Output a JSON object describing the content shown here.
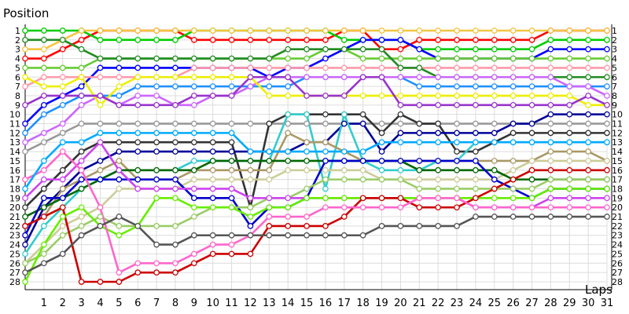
{
  "chart_data": {
    "type": "line",
    "title": "",
    "ylabel": "Position",
    "xlabel": "Laps",
    "x": [
      0,
      1,
      2,
      3,
      4,
      5,
      6,
      7,
      8,
      9,
      10,
      11,
      12,
      13,
      14,
      15,
      16,
      17,
      18,
      19,
      20,
      21,
      22,
      23,
      24,
      25,
      26,
      27,
      28,
      29,
      30,
      31
    ],
    "xticks": [
      1,
      2,
      3,
      4,
      5,
      6,
      7,
      8,
      9,
      10,
      11,
      12,
      13,
      14,
      15,
      16,
      17,
      18,
      19,
      20,
      21,
      22,
      23,
      24,
      25,
      26,
      27,
      28,
      29,
      30,
      31
    ],
    "yticks": [
      1,
      2,
      3,
      4,
      5,
      6,
      7,
      8,
      9,
      10,
      11,
      12,
      13,
      14,
      15,
      16,
      17,
      18,
      19,
      20,
      21,
      22,
      23,
      24,
      25,
      26,
      27,
      28
    ],
    "ylim": [
      1,
      28
    ],
    "y_inverted": true,
    "grid": true,
    "legend": "none",
    "series": [
      {
        "color": "#ff0000",
        "marker": "#ffffff",
        "values": [
          4,
          4,
          3,
          2,
          1,
          1,
          1,
          1,
          1,
          2,
          2,
          2,
          2,
          2,
          2,
          2,
          2,
          1,
          1,
          3,
          3,
          2,
          2,
          2,
          2,
          2,
          2,
          2,
          1,
          1,
          1,
          1
        ]
      },
      {
        "color": "#00cc00",
        "marker": "#ffffff",
        "values": [
          1,
          1,
          1,
          1,
          2,
          2,
          2,
          2,
          2,
          1,
          1,
          1,
          1,
          1,
          1,
          1,
          1,
          2,
          2,
          2,
          2,
          3,
          3,
          3,
          3,
          3,
          3,
          3,
          2,
          2,
          2,
          2
        ]
      },
      {
        "color": "#f4c542",
        "marker": "#ffffff",
        "values": [
          3,
          3,
          2,
          1,
          1,
          1,
          1,
          1,
          1,
          1,
          1,
          1,
          1,
          1,
          1,
          1,
          1,
          1,
          1,
          1,
          1,
          1,
          1,
          1,
          1,
          1,
          1,
          1,
          1,
          1,
          1,
          1
        ]
      },
      {
        "color": "#0000ff",
        "marker": "#ffffff",
        "values": [
          11,
          9,
          8,
          7,
          5,
          5,
          5,
          5,
          5,
          5,
          5,
          5,
          5,
          6,
          5,
          5,
          4,
          3,
          2,
          2,
          2,
          3,
          4,
          4,
          4,
          4,
          4,
          4,
          3,
          3,
          3,
          3
        ]
      },
      {
        "color": "#66cc33",
        "marker": "#ffffff",
        "values": [
          5,
          5,
          5,
          5,
          4,
          4,
          4,
          4,
          4,
          4,
          4,
          4,
          4,
          4,
          4,
          4,
          3,
          3,
          4,
          4,
          4,
          4,
          4,
          4,
          4,
          4,
          4,
          4,
          4,
          4,
          4,
          4
        ]
      },
      {
        "color": "#ff99aa",
        "marker": "#ffffff",
        "values": [
          7,
          6,
          6,
          6,
          6,
          6,
          6,
          6,
          6,
          5,
          5,
          5,
          5,
          5,
          5,
          5,
          5,
          5,
          5,
          5,
          5,
          5,
          5,
          5,
          5,
          5,
          5,
          5,
          5,
          5,
          5,
          5
        ]
      },
      {
        "color": "#228b22",
        "marker": "#ffffff",
        "values": [
          2,
          2,
          2,
          3,
          4,
          4,
          4,
          4,
          4,
          4,
          4,
          4,
          4,
          4,
          3,
          3,
          3,
          3,
          3,
          3,
          5,
          5,
          6,
          6,
          6,
          6,
          6,
          6,
          6,
          6,
          6,
          6
        ]
      },
      {
        "color": "#1e90ff",
        "marker": "#ffffff",
        "values": [
          12,
          10,
          9,
          8,
          8,
          8,
          7,
          7,
          7,
          7,
          7,
          7,
          7,
          7,
          7,
          6,
          6,
          6,
          6,
          6,
          6,
          7,
          7,
          7,
          7,
          7,
          7,
          7,
          7,
          7,
          7,
          7
        ]
      },
      {
        "color": "#cc66ff",
        "marker": "#ffffff",
        "values": [
          13,
          12,
          11,
          9,
          8,
          9,
          8,
          8,
          9,
          9,
          8,
          8,
          7,
          6,
          6,
          6,
          6,
          6,
          6,
          6,
          6,
          6,
          6,
          6,
          6,
          6,
          6,
          6,
          6,
          7,
          7,
          8
        ]
      },
      {
        "color": "#eeee00",
        "marker": "#ffffff",
        "values": [
          6,
          7,
          7,
          6,
          9,
          7,
          6,
          6,
          6,
          6,
          6,
          6,
          6,
          8,
          8,
          8,
          8,
          8,
          8,
          8,
          8,
          8,
          8,
          8,
          8,
          8,
          8,
          8,
          8,
          8,
          9,
          9
        ]
      },
      {
        "color": "#9933cc",
        "marker": "#ffffff",
        "values": [
          9,
          8,
          8,
          8,
          8,
          9,
          9,
          9,
          9,
          8,
          8,
          8,
          6,
          6,
          6,
          8,
          8,
          8,
          6,
          6,
          9,
          9,
          9,
          9,
          9,
          9,
          9,
          9,
          9,
          9,
          8,
          9
        ]
      },
      {
        "color": "#999999",
        "marker": "#ffffff",
        "values": [
          14,
          13,
          12,
          11,
          11,
          11,
          11,
          11,
          11,
          11,
          11,
          11,
          11,
          11,
          11,
          11,
          11,
          11,
          11,
          11,
          11,
          11,
          11,
          11,
          11,
          11,
          11,
          11,
          11,
          11,
          11,
          11
        ]
      },
      {
        "color": "#333333",
        "marker": "#ffffff",
        "values": [
          20,
          18,
          16,
          14,
          13,
          13,
          13,
          13,
          13,
          13,
          13,
          13,
          20,
          11,
          10,
          10,
          10,
          10,
          10,
          12,
          10,
          11,
          11,
          14,
          14,
          13,
          12,
          12,
          12,
          12,
          12,
          12
        ]
      },
      {
        "color": "#000099",
        "marker": "#ffffff",
        "values": [
          24,
          20,
          18,
          16,
          15,
          14,
          14,
          14,
          14,
          14,
          14,
          14,
          14,
          14,
          14,
          13,
          13,
          11,
          11,
          14,
          12,
          12,
          12,
          12,
          12,
          12,
          11,
          11,
          10,
          10,
          10,
          10
        ]
      },
      {
        "color": "#33cccc",
        "marker": "#ffffff",
        "values": [
          25,
          22,
          20,
          18,
          17,
          16,
          16,
          16,
          16,
          15,
          15,
          15,
          15,
          15,
          10,
          10,
          18,
          10,
          15,
          16,
          16,
          16,
          15,
          15,
          13,
          13,
          13,
          13,
          13,
          13,
          13,
          13
        ]
      },
      {
        "color": "#aa9966",
        "marker": "#ffffff",
        "values": [
          22,
          21,
          18,
          17,
          16,
          15,
          17,
          17,
          17,
          16,
          16,
          16,
          16,
          16,
          12,
          13,
          13,
          14,
          15,
          15,
          15,
          15,
          15,
          15,
          15,
          15,
          15,
          15,
          14,
          14,
          14,
          15
        ]
      },
      {
        "color": "#cccc99",
        "marker": "#ffffff",
        "values": [
          26,
          24,
          22,
          21,
          20,
          18,
          18,
          18,
          18,
          17,
          17,
          17,
          17,
          17,
          16,
          16,
          16,
          16,
          16,
          17,
          17,
          17,
          17,
          17,
          17,
          17,
          16,
          15,
          15,
          15,
          15,
          15
        ]
      },
      {
        "color": "#006600",
        "marker": "#ffffff",
        "values": [
          21,
          20,
          19,
          18,
          17,
          16,
          16,
          16,
          16,
          16,
          15,
          15,
          15,
          15,
          15,
          15,
          15,
          15,
          15,
          15,
          15,
          16,
          16,
          16,
          16,
          16,
          17,
          17,
          17,
          17,
          17,
          17
        ]
      },
      {
        "color": "#0000cc",
        "marker": "#ffffff",
        "values": [
          23,
          19,
          19,
          17,
          17,
          17,
          17,
          17,
          17,
          19,
          19,
          19,
          22,
          20,
          20,
          19,
          15,
          15,
          15,
          15,
          15,
          15,
          15,
          15,
          15,
          17,
          18,
          19,
          18,
          18,
          18,
          18
        ]
      },
      {
        "color": "#99cc66",
        "marker": "#ffffff",
        "values": [
          26,
          25,
          23,
          22,
          21,
          22,
          22,
          22,
          22,
          21,
          20,
          20,
          20,
          19,
          19,
          18,
          17,
          17,
          17,
          17,
          17,
          18,
          18,
          18,
          18,
          18,
          18,
          18,
          17,
          17,
          17,
          17
        ]
      },
      {
        "color": "#cc44ee",
        "marker": "#ffffff",
        "values": [
          19,
          17,
          17,
          15,
          13,
          16,
          18,
          18,
          18,
          18,
          18,
          18,
          19,
          19,
          19,
          19,
          19,
          19,
          19,
          19,
          19,
          19,
          19,
          19,
          20,
          20,
          20,
          20,
          19,
          19,
          19,
          19
        ]
      },
      {
        "color": "#66ee00",
        "marker": "#ffffff",
        "values": [
          28,
          24,
          21,
          20,
          22,
          23,
          22,
          19,
          19,
          20,
          20,
          20,
          21,
          20,
          20,
          19,
          19,
          19,
          19,
          19,
          19,
          19,
          19,
          19,
          19,
          19,
          19,
          19,
          18,
          18,
          18,
          18
        ]
      },
      {
        "color": "#cc0000",
        "marker": "#ffffff",
        "values": [
          22,
          21,
          20,
          28,
          28,
          28,
          27,
          27,
          27,
          26,
          25,
          25,
          25,
          22,
          22,
          22,
          22,
          21,
          19,
          19,
          19,
          20,
          20,
          20,
          19,
          18,
          17,
          16,
          16,
          16,
          16,
          16
        ]
      },
      {
        "color": "#ff66cc",
        "marker": "#ffffff",
        "values": [
          17,
          16,
          14,
          16,
          20,
          27,
          26,
          26,
          26,
          25,
          24,
          24,
          23,
          21,
          21,
          21,
          20,
          20,
          20,
          20,
          20,
          19,
          19,
          19,
          20,
          20,
          20,
          20,
          20,
          20,
          20,
          20
        ]
      },
      {
        "color": "#00aaff",
        "marker": "#ffffff",
        "values": [
          18,
          15,
          13,
          13,
          12,
          12,
          12,
          12,
          12,
          12,
          12,
          12,
          14,
          14,
          14,
          14,
          14,
          14,
          14,
          13,
          13,
          13,
          13,
          13,
          13,
          13,
          13,
          13,
          13,
          13,
          13,
          13
        ]
      },
      {
        "color": "#555555",
        "marker": "#ffffff",
        "values": [
          27,
          26,
          25,
          23,
          22,
          21,
          22,
          24,
          24,
          23,
          23,
          23,
          23,
          23,
          23,
          23,
          23,
          23,
          23,
          22,
          22,
          22,
          22,
          22,
          21,
          21,
          21,
          21,
          21,
          21,
          21,
          21
        ]
      }
    ]
  }
}
